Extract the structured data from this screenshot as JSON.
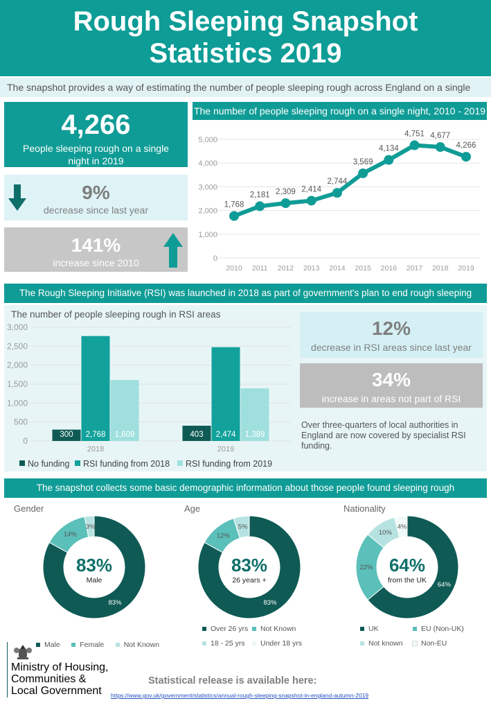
{
  "title_line1": "Rough Sleeping Snapshot",
  "title_line2": "Statistics 2019",
  "intro": "The snapshot provides a way of estimating the number of people sleeping rough across England on a single night",
  "headline": {
    "value": "4,266",
    "label": "People sleeping rough on a single night in 2019"
  },
  "decrease": {
    "value": "9%",
    "label": "decrease since last year"
  },
  "increase": {
    "value": "141%",
    "label": "increase since 2010"
  },
  "colors": {
    "teal": "#109c96",
    "dark_teal": "#0f5a55",
    "mid_teal": "#12a19b",
    "light_teal": "#9fe0de",
    "pale": "#e7f5f7",
    "grey": "#bdbdbd",
    "link": "#1f4fbf"
  },
  "icons": {
    "down_arrow": "arrow-down-icon",
    "up_arrow": "arrow-up-icon",
    "crest": "royal-crest-icon"
  },
  "chart_data": [
    {
      "type": "line",
      "title": "The number of people sleeping rough on a single night, 2010 - 2019",
      "x": [
        "2010",
        "2011",
        "2012",
        "2013",
        "2014",
        "2015",
        "2016",
        "2017",
        "2018",
        "2019"
      ],
      "y": [
        1768,
        2181,
        2309,
        2414,
        2744,
        3569,
        4134,
        4751,
        4677,
        4266
      ],
      "data_labels": [
        "1,768",
        "2,181",
        "2,309",
        "2,414",
        "2,744",
        "3,569",
        "4,134",
        "4,751",
        "4,677",
        "4,266"
      ],
      "yticks": [
        "0",
        "1,000",
        "2,000",
        "3,000",
        "4,000",
        "5,000"
      ],
      "ylim": [
        0,
        5000
      ],
      "grid": true
    },
    {
      "type": "bar",
      "title": "The number of people sleeping rough in RSI areas",
      "categories": [
        "2018",
        "2019"
      ],
      "series": [
        {
          "name": "No funding",
          "values": [
            300,
            403
          ],
          "labels": [
            "300",
            "403"
          ],
          "color": "#0f5a55"
        },
        {
          "name": "RSI funding from 2018",
          "values": [
            2768,
            2474
          ],
          "labels": [
            "2,768",
            "2,474"
          ],
          "color": "#12a19b"
        },
        {
          "name": "RSI funding from 2019",
          "values": [
            1609,
            1389
          ],
          "labels": [
            "1,609",
            "1,389"
          ],
          "color": "#9fe0de"
        }
      ],
      "yticks": [
        "0",
        "500",
        "1,000",
        "1,500",
        "2,000",
        "2,500",
        "3,000"
      ],
      "ylim": [
        0,
        3000
      ],
      "legend": "bottom",
      "grid": true
    },
    {
      "type": "pie",
      "title": "Gender",
      "center_value": "83%",
      "center_label": "Male",
      "slices": [
        {
          "name": "Male",
          "value": 83,
          "label": "83%",
          "color": "#0f5a55"
        },
        {
          "name": "Female",
          "value": 14,
          "label": "14%",
          "color": "#5bbfba"
        },
        {
          "name": "Not Known",
          "value": 3,
          "label": "3%",
          "color": "#b6e3e1"
        }
      ]
    },
    {
      "type": "pie",
      "title": "Age",
      "center_value": "83%",
      "center_label": "26 years +",
      "slices": [
        {
          "name": "Over 26 yrs",
          "value": 83,
          "label": "83%",
          "color": "#0f5a55"
        },
        {
          "name": "Not Known",
          "value": 12,
          "label": "12%",
          "color": "#5bbfba"
        },
        {
          "name": "18 - 25 yrs",
          "value": 5,
          "label": "5%",
          "color": "#b6e3e1"
        },
        {
          "name": "Under 18 yrs",
          "value": 0,
          "label": "",
          "color": "#eef7f7"
        }
      ]
    },
    {
      "type": "pie",
      "title": "Nationality",
      "center_value": "64%",
      "center_label": "from the UK",
      "slices": [
        {
          "name": "UK",
          "value": 64,
          "label": "64%",
          "color": "#0f5a55"
        },
        {
          "name": "EU (Non-UK)",
          "value": 22,
          "label": "22%",
          "color": "#5bbfba"
        },
        {
          "name": "Not known",
          "value": 10,
          "label": "10%",
          "color": "#b6e3e1"
        },
        {
          "name": "Non-EU",
          "value": 4,
          "label": "4%",
          "color": "#f2f9f9"
        }
      ]
    }
  ],
  "rsi": {
    "heading": "The Rough Sleeping Initiative (RSI) was launched in 2018 as part of government's plan to end rough sleeping",
    "decrease": {
      "value": "12%",
      "label": "decrease in RSI areas since last year"
    },
    "increase": {
      "value": "34%",
      "label": "increase in areas not part of RSI"
    },
    "note": "Over three-quarters of local authorities in England are now covered by specialist RSI funding."
  },
  "demographics_heading": "The snapshot collects some basic demographic information about those people found sleeping rough",
  "footer": {
    "ministry": [
      "Ministry of Housing,",
      "Communities &",
      "Local Government"
    ],
    "release": "Statistical release is available here:",
    "link": "https://www.gov.uk/government/statistics/annual-rough-sleeping-snapshot-in-england-autumn-2019"
  }
}
